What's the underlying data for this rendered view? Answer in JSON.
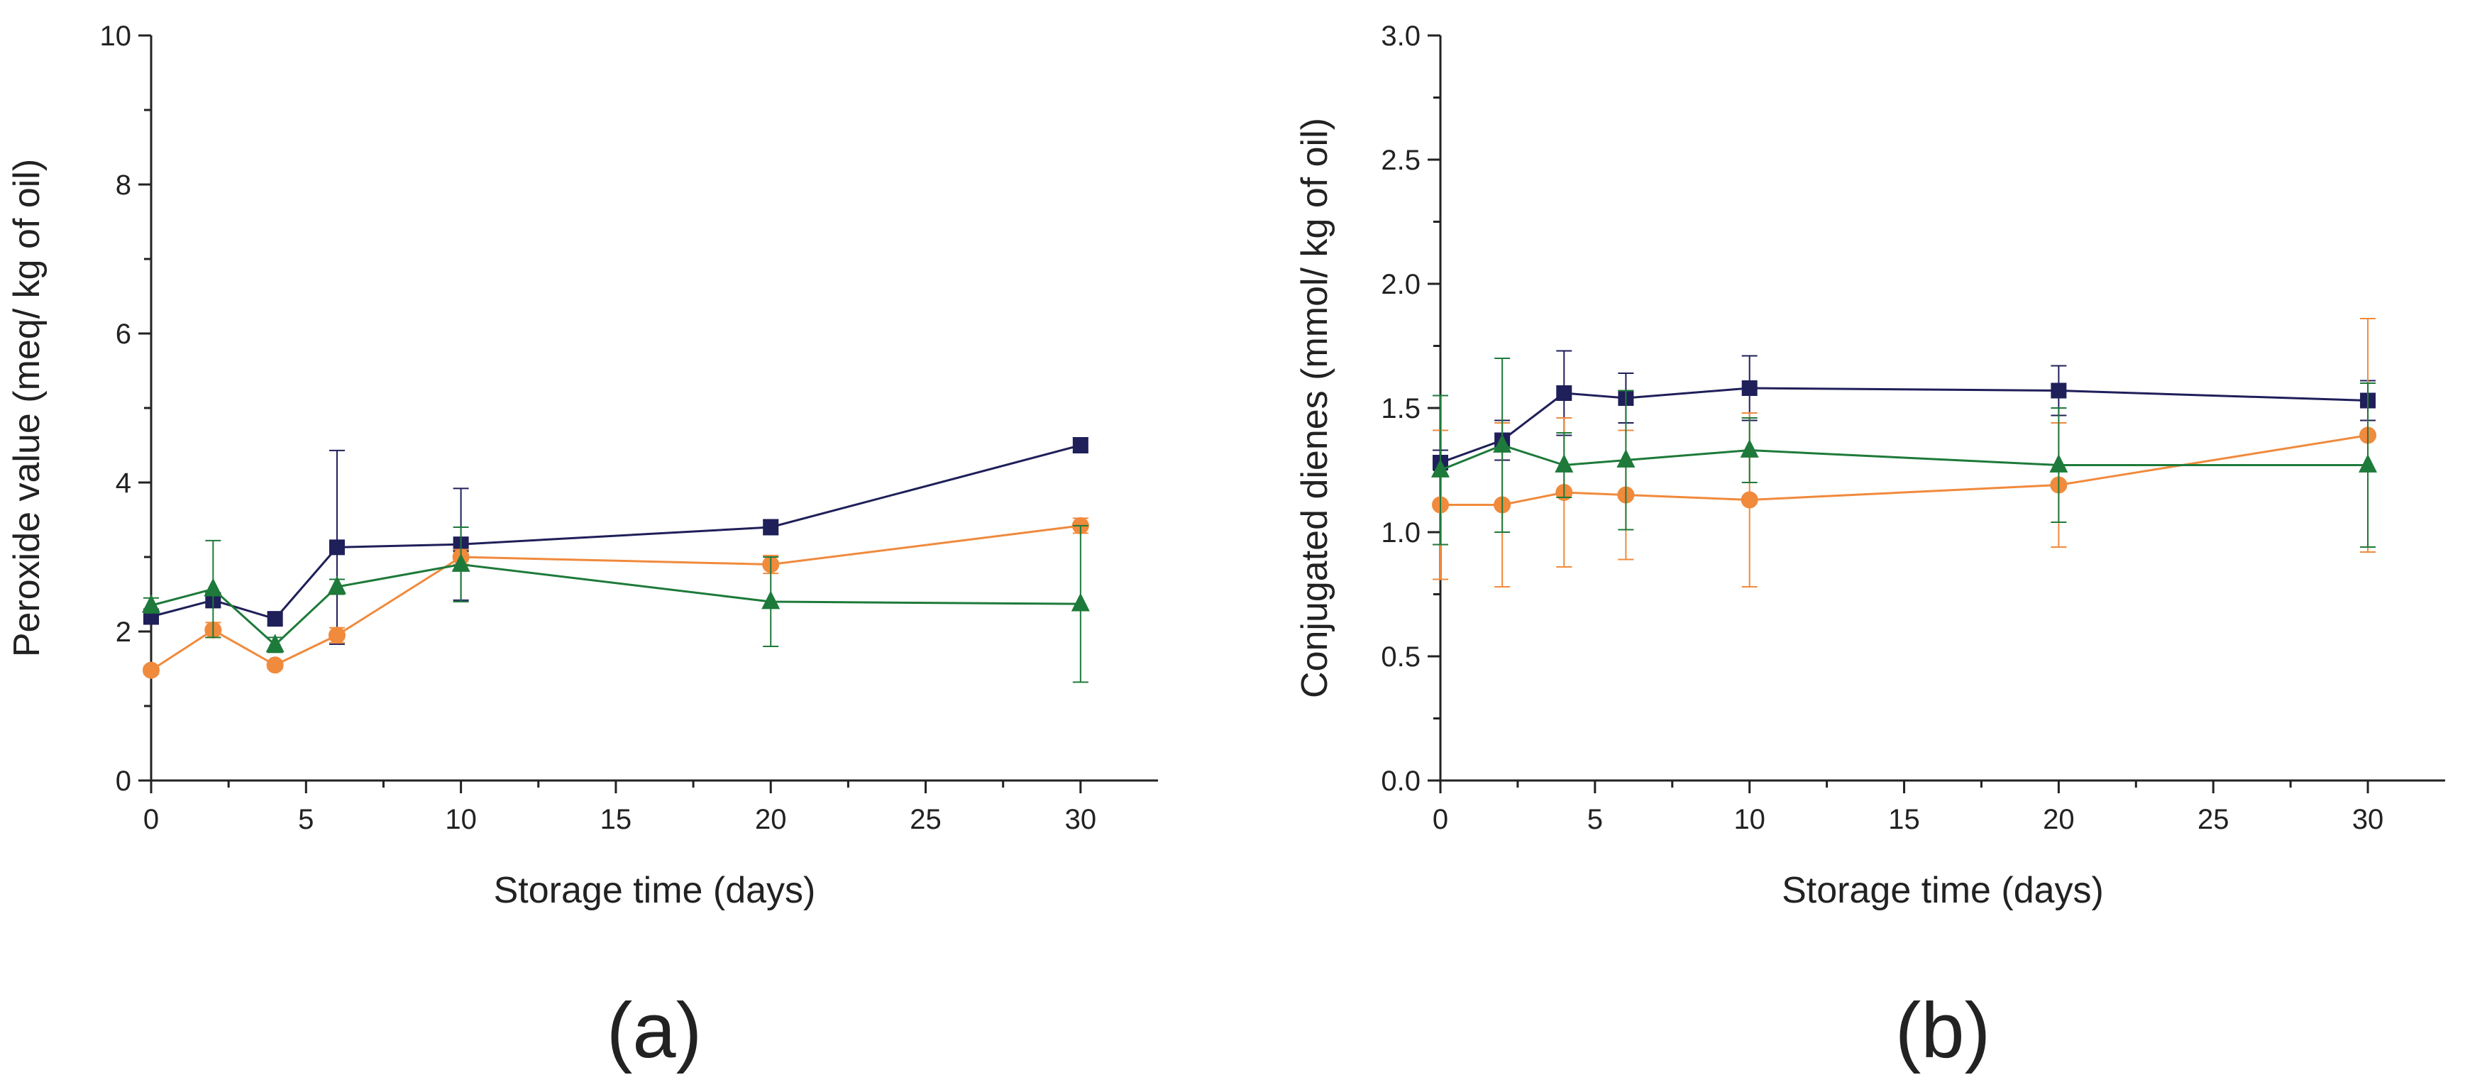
{
  "colors": {
    "square": "#1f1f5a",
    "circle": "#f08a3c",
    "triangle": "#1e7a3a",
    "axis": "#222222"
  },
  "chart_data": [
    {
      "type": "line",
      "panel_label": "(a)",
      "xlabel": "Storage time (days)",
      "ylabel": "Peroxide value (meq/ kg of oil)",
      "xlim": [
        0,
        32.5
      ],
      "ylim": [
        0,
        10
      ],
      "xticks": [
        0,
        5,
        10,
        15,
        20,
        25,
        30
      ],
      "xtick_labels": [
        "0",
        "5",
        "10",
        "15",
        "20",
        "25",
        "30"
      ],
      "yticks": [
        0,
        2,
        4,
        6,
        8,
        10
      ],
      "ytick_labels": [
        "0",
        "2",
        "4",
        "6",
        "8",
        "10"
      ],
      "x": [
        0,
        2,
        4,
        6,
        10,
        20,
        30
      ],
      "series": [
        {
          "name": "square",
          "marker": "square",
          "values": [
            2.2,
            2.42,
            2.17,
            3.13,
            3.17,
            3.4,
            4.5
          ],
          "errors": [
            0.1,
            0.1,
            0.08,
            1.3,
            0.75,
            0.1,
            0.1
          ]
        },
        {
          "name": "circle",
          "marker": "circle",
          "values": [
            1.48,
            2.02,
            1.55,
            1.95,
            3.0,
            2.9,
            3.42
          ],
          "errors": [
            0.05,
            0.1,
            0.05,
            0.1,
            0.1,
            0.12,
            0.1
          ]
        },
        {
          "name": "triangle",
          "marker": "triangle",
          "values": [
            2.35,
            2.57,
            1.82,
            2.6,
            2.9,
            2.4,
            2.37
          ],
          "errors": [
            0.1,
            0.65,
            0.1,
            0.1,
            0.5,
            0.6,
            1.05
          ]
        }
      ]
    },
    {
      "type": "line",
      "panel_label": "(b)",
      "xlabel": "Storage time (days)",
      "ylabel": "Conjugated dienes (mmol/ kg of oil)",
      "xlim": [
        0,
        32.5
      ],
      "ylim": [
        0,
        3.0
      ],
      "xticks": [
        0,
        5,
        10,
        15,
        20,
        25,
        30
      ],
      "xtick_labels": [
        "0",
        "5",
        "10",
        "15",
        "20",
        "25",
        "30"
      ],
      "yticks": [
        0,
        0.5,
        1.0,
        1.5,
        2.0,
        2.5,
        3.0
      ],
      "ytick_labels": [
        "0.0",
        "0.5",
        "1.0",
        "1.5",
        "2.0",
        "2.5",
        "3.0"
      ],
      "x": [
        0,
        2,
        4,
        6,
        10,
        20,
        30
      ],
      "series": [
        {
          "name": "square",
          "marker": "square",
          "values": [
            1.28,
            1.37,
            1.56,
            1.54,
            1.58,
            1.57,
            1.53
          ],
          "errors": [
            0.05,
            0.08,
            0.17,
            0.1,
            0.13,
            0.1,
            0.08
          ]
        },
        {
          "name": "circle",
          "marker": "circle",
          "values": [
            1.11,
            1.11,
            1.16,
            1.15,
            1.13,
            1.19,
            1.39
          ],
          "errors": [
            0.3,
            0.33,
            0.3,
            0.26,
            0.35,
            0.25,
            0.47
          ]
        },
        {
          "name": "triangle",
          "marker": "triangle",
          "values": [
            1.25,
            1.35,
            1.27,
            1.29,
            1.33,
            1.27,
            1.27
          ],
          "errors": [
            0.3,
            0.35,
            0.13,
            0.28,
            0.13,
            0.23,
            0.33
          ]
        }
      ]
    }
  ]
}
